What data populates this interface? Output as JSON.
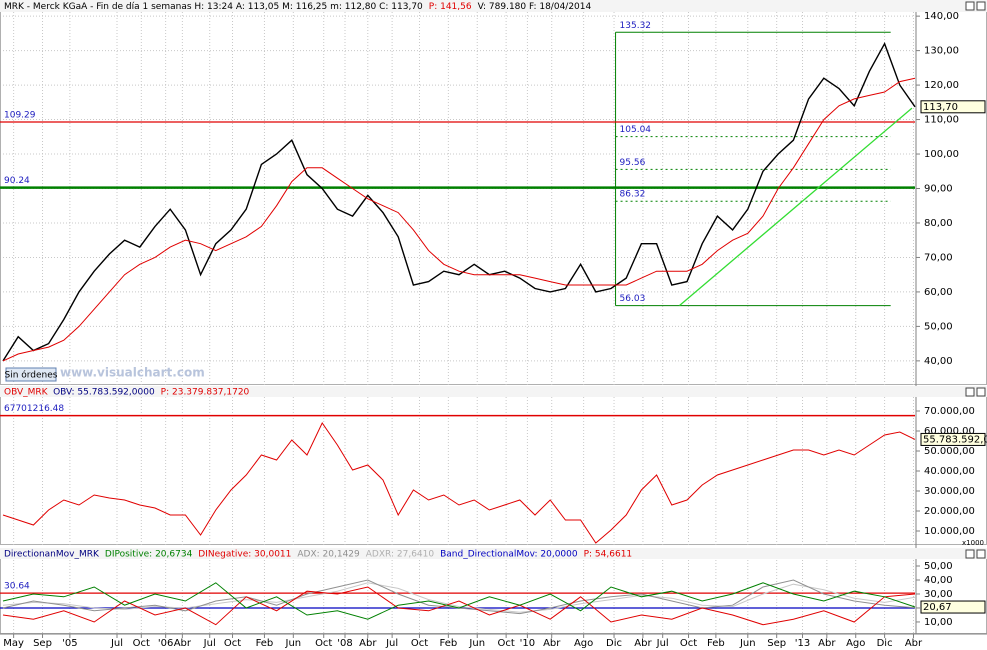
{
  "chart_data": [
    {
      "type": "line",
      "header": [
        {
          "text": "MRK - Merck KGaA - Fin de día 1 semanas H: 13:24 A: 113,05 M: 116,25 m: 112,80 C: 113,70",
          "color": "#000000"
        },
        {
          "text": "P: 141,56",
          "color": "#e00000"
        },
        {
          "text": "V: 789.180 F: 18/04/2014",
          "color": "#000000"
        }
      ],
      "watermark": "www.visualchart.com",
      "button": "Sin órdenes",
      "xlim": [
        0,
        60
      ],
      "ylim": [
        33,
        141.2
      ],
      "grid": true,
      "yticks": [
        {
          "value": 40,
          "label": "40,00"
        },
        {
          "value": 50,
          "label": "50,00"
        },
        {
          "value": 60,
          "label": "60,00"
        },
        {
          "value": 70,
          "label": "70,00"
        },
        {
          "value": 80,
          "label": "80,00"
        },
        {
          "value": 90,
          "label": "90,00"
        },
        {
          "value": 100,
          "label": "100,00"
        },
        {
          "value": 110,
          "label": "110,00"
        },
        {
          "value": 120,
          "label": "120,00"
        },
        {
          "value": 130,
          "label": "130,00"
        },
        {
          "value": 140,
          "label": "140,00"
        }
      ],
      "xticks": [
        {
          "value": 0.7,
          "label": "May"
        },
        {
          "value": 2.6,
          "label": "Sep"
        },
        {
          "value": 4.4,
          "label": "'05"
        },
        {
          "value": 7.5,
          "label": "Jul"
        },
        {
          "value": 9.1,
          "label": "Oct"
        },
        {
          "value": 10.7,
          "label": "'06"
        },
        {
          "value": 11.8,
          "label": "Abr"
        },
        {
          "value": 13.6,
          "label": "Jul"
        },
        {
          "value": 15.1,
          "label": "Oct"
        },
        {
          "value": 17.2,
          "label": "Feb"
        },
        {
          "value": 19.1,
          "label": "Jun"
        },
        {
          "value": 21.1,
          "label": "Oct"
        },
        {
          "value": 22.5,
          "label": "'08"
        },
        {
          "value": 24,
          "label": "Abr"
        },
        {
          "value": 25.6,
          "label": "Jul"
        },
        {
          "value": 27.4,
          "label": "Oct"
        },
        {
          "value": 29.3,
          "label": "Feb"
        },
        {
          "value": 31.2,
          "label": "Jun"
        },
        {
          "value": 33.1,
          "label": "Oct"
        },
        {
          "value": 34.5,
          "label": "'10"
        },
        {
          "value": 36.1,
          "label": "Abr"
        },
        {
          "value": 38.2,
          "label": "Ago"
        },
        {
          "value": 40.2,
          "label": "Dic"
        },
        {
          "value": 42.1,
          "label": "Abr"
        },
        {
          "value": 43.4,
          "label": "Jul"
        },
        {
          "value": 45.1,
          "label": "Oct"
        },
        {
          "value": 46.9,
          "label": "Feb"
        },
        {
          "value": 49,
          "label": "Jun"
        },
        {
          "value": 50.9,
          "label": "Sep"
        },
        {
          "value": 52.6,
          "label": "'13"
        },
        {
          "value": 54.2,
          "label": "Abr"
        },
        {
          "value": 56.1,
          "label": "Ago"
        },
        {
          "value": 58,
          "label": "Dic"
        },
        {
          "value": 59.9,
          "label": "Abr"
        }
      ],
      "series": [
        {
          "color": "#000000",
          "values": [
            40,
            47,
            43,
            45,
            52,
            60,
            66,
            71,
            75,
            73,
            79,
            84,
            78,
            65,
            74,
            78,
            84,
            97,
            100,
            104,
            94,
            90,
            84,
            82,
            88,
            83,
            76,
            62,
            63,
            66,
            65,
            68,
            65,
            66,
            64,
            61,
            60,
            61,
            68,
            60,
            61,
            64,
            74,
            74,
            62,
            63,
            74,
            82,
            78,
            84,
            95,
            100,
            104,
            116,
            122,
            119,
            114,
            124,
            132,
            120,
            113.7
          ]
        },
        {
          "color": "#e00000",
          "values": [
            40,
            42,
            43,
            44,
            46,
            50,
            55,
            60,
            65,
            68,
            70,
            73,
            75,
            74,
            72,
            74,
            76,
            79,
            85,
            92,
            96,
            96,
            93,
            90,
            87,
            85,
            83,
            78,
            72,
            68,
            66,
            65,
            65,
            65,
            65,
            64,
            63,
            62,
            62,
            62,
            62,
            62,
            64,
            66,
            66,
            66,
            68,
            72,
            75,
            77,
            82,
            90,
            96,
            103,
            110,
            114,
            116,
            117,
            118,
            121,
            122
          ]
        }
      ],
      "hlines": [
        {
          "value": 109.29,
          "label": "109.29",
          "color": "#e00000",
          "width": 1.2
        },
        {
          "value": 90.24,
          "label": "90.24",
          "color": "#008000",
          "width": 2.5
        }
      ],
      "fib": {
        "x": [
          40.3,
          58.4
        ],
        "color": "#008000",
        "levels": [
          135.32,
          105.04,
          95.56,
          86.32,
          56.03
        ]
      },
      "trendline": {
        "x": [
          44.5,
          59.8
        ],
        "values": [
          56.03,
          113.3
        ],
        "color": "#33dd33"
      },
      "current": {
        "value": 113.7,
        "label": "113,70"
      }
    },
    {
      "type": "line",
      "header": [
        {
          "text": "OBV_MRK",
          "color": "#e00000"
        },
        {
          "text": "OBV: 55.783.592,0000",
          "color": "#000080"
        },
        {
          "text": "P: 23.379.837,1720",
          "color": "#e00000"
        }
      ],
      "unit_label": "x1000",
      "xlim": [
        0,
        60
      ],
      "ylim": [
        3000,
        77000
      ],
      "yticks": [
        {
          "value": 10000,
          "label": "10.000,00"
        },
        {
          "value": 20000,
          "label": "20.000,00"
        },
        {
          "value": 30000,
          "label": "30.000,00"
        },
        {
          "value": 40000,
          "label": "40.000,00"
        },
        {
          "value": 50000,
          "label": "50.000,00"
        },
        {
          "value": 60000,
          "label": "60.000,00"
        },
        {
          "value": 70000,
          "label": "70.000,00"
        }
      ],
      "series": [
        {
          "color": "#e00000",
          "values": [
            18000,
            15500,
            13000,
            20500,
            25500,
            23000,
            28000,
            26500,
            25500,
            23000,
            21500,
            18000,
            18000,
            8000,
            20500,
            30500,
            38000,
            48000,
            45500,
            55500,
            48000,
            64000,
            53000,
            40500,
            43000,
            35500,
            18000,
            30500,
            25500,
            28000,
            23000,
            25500,
            20500,
            23000,
            25500,
            18000,
            25500,
            15500,
            15500,
            4000,
            10500,
            18000,
            30500,
            38000,
            23000,
            25500,
            33000,
            38000,
            40500,
            43000,
            45500,
            48000,
            50500,
            50500,
            48000,
            50500,
            48000,
            53000,
            58000,
            59500,
            55783.592
          ]
        }
      ],
      "hlines": [
        {
          "value": 67701.21648,
          "label": "67701216.48",
          "color": "#e00000",
          "width": 1.5
        }
      ],
      "current": {
        "value": 55783.592,
        "label": "55.783.592,00"
      }
    },
    {
      "type": "line",
      "header": [
        {
          "text": "DirectionanMov_MRK",
          "color": "#000080"
        },
        {
          "text": "DIPositive: 20,6734",
          "color": "#008000"
        },
        {
          "text": "DINegative: 30,0011",
          "color": "#e00000"
        },
        {
          "text": "ADX: 20,1429",
          "color": "#909090"
        },
        {
          "text": "ADXR: 27,6410",
          "color": "#b0b0b0"
        },
        {
          "text": "Band_DirectionalMov: 20,0000",
          "color": "#0000c0"
        },
        {
          "text": "P: 54,6611",
          "color": "#e00000"
        }
      ],
      "xlim": [
        0,
        30
      ],
      "ylim": [
        2.1,
        54.3
      ],
      "yticks": [
        {
          "value": 10,
          "label": "10,00"
        },
        {
          "value": 20,
          "label": "20,00"
        },
        {
          "value": 30,
          "label": "30,00"
        },
        {
          "value": 40,
          "label": "40,00"
        },
        {
          "value": 50,
          "label": "50,00"
        }
      ],
      "series": [
        {
          "color": "#c8c8c8",
          "values": [
            22,
            24,
            23,
            20,
            19,
            21,
            20,
            23,
            26,
            24,
            28,
            32,
            38,
            34,
            26,
            21,
            19,
            17,
            19,
            23,
            26,
            29,
            27,
            22,
            21,
            30,
            37,
            33,
            27,
            24,
            27.641
          ]
        },
        {
          "color": "#909090",
          "values": [
            20,
            25,
            22,
            18,
            20,
            22,
            18,
            25,
            28,
            22,
            30,
            35,
            40,
            30,
            22,
            20,
            18,
            16,
            20,
            25,
            28,
            30,
            25,
            20,
            22,
            35,
            40,
            30,
            25,
            22,
            20.1429
          ]
        },
        {
          "color": "#e00000",
          "values": [
            15,
            12,
            18,
            10,
            25,
            15,
            20,
            8,
            28,
            18,
            32,
            30,
            35,
            20,
            18,
            25,
            15,
            22,
            12,
            28,
            10,
            15,
            12,
            20,
            15,
            8,
            12,
            18,
            10,
            28,
            30.0011
          ]
        },
        {
          "color": "#008000",
          "values": [
            25,
            30,
            28,
            35,
            22,
            30,
            25,
            38,
            20,
            28,
            15,
            18,
            12,
            22,
            25,
            20,
            28,
            22,
            30,
            18,
            35,
            28,
            32,
            25,
            30,
            38,
            30,
            25,
            32,
            28,
            20.6734
          ]
        }
      ],
      "hlines": [
        {
          "value": 30.64,
          "label": "30.64",
          "color": "#e00000",
          "width": 1.2
        },
        {
          "value": 20,
          "color": "#0000c0",
          "width": 1.2
        }
      ],
      "current": {
        "value": 20.67,
        "label": "20,67"
      }
    }
  ]
}
